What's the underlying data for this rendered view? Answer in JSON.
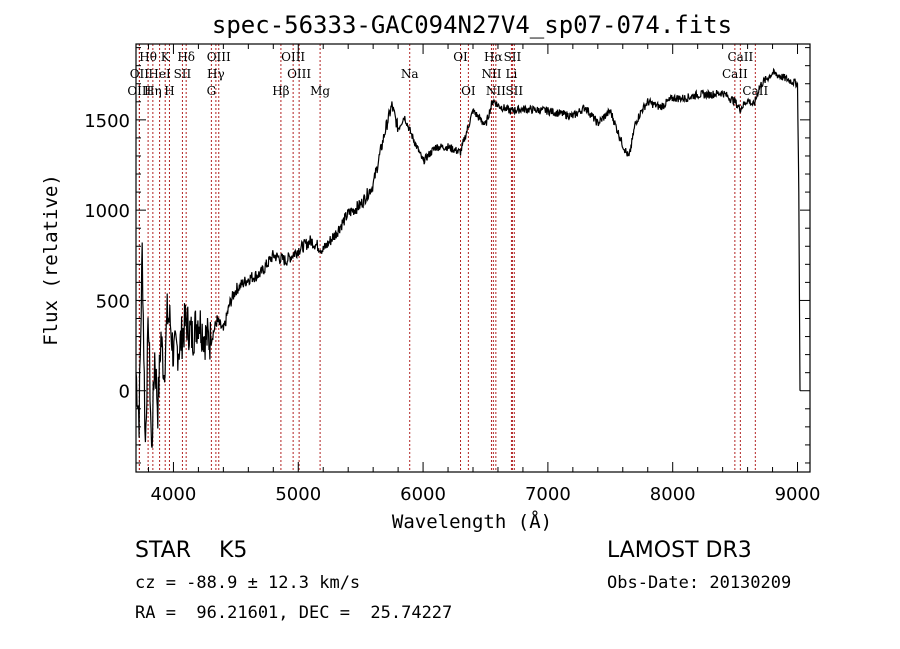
{
  "chart_data": {
    "type": "line",
    "title": "spec-56333-GAC094N27V4_sp07-074.fits",
    "xlabel": "Wavelength (Å)",
    "ylabel": "Flux (relative)",
    "xlim": [
      3700,
      9100
    ],
    "ylim": [
      -450,
      1920
    ],
    "xticks": [
      4000,
      5000,
      6000,
      7000,
      8000,
      9000
    ],
    "yticks": [
      0,
      500,
      1000,
      1500
    ],
    "xtick_labels": [
      "4000",
      "5000",
      "6000",
      "7000",
      "8000",
      "9000"
    ],
    "ytick_labels": [
      "0",
      "500",
      "1000",
      "1500"
    ],
    "series": [
      {
        "name": "flux",
        "x": [
          3700,
          3725,
          3750,
          3775,
          3800,
          3825,
          3850,
          3875,
          3900,
          3925,
          3950,
          3975,
          4000,
          4050,
          4100,
          4150,
          4200,
          4250,
          4300,
          4350,
          4400,
          4450,
          4500,
          4600,
          4700,
          4800,
          4900,
          5000,
          5100,
          5200,
          5300,
          5400,
          5500,
          5600,
          5700,
          5750,
          5800,
          5850,
          5900,
          6000,
          6100,
          6200,
          6300,
          6400,
          6500,
          6560,
          6600,
          6700,
          6800,
          7000,
          7200,
          7300,
          7400,
          7500,
          7600,
          7650,
          7700,
          7750,
          7800,
          7900,
          8000,
          8100,
          8200,
          8300,
          8400,
          8500,
          8540,
          8600,
          8650,
          8700,
          8800,
          8900,
          9000,
          9010,
          9020
        ],
        "y": [
          100,
          -150,
          780,
          -300,
          400,
          -350,
          200,
          -100,
          300,
          100,
          420,
          380,
          200,
          250,
          390,
          300,
          400,
          300,
          280,
          390,
          330,
          480,
          560,
          620,
          650,
          750,
          720,
          780,
          830,
          780,
          870,
          980,
          1030,
          1140,
          1450,
          1580,
          1450,
          1520,
          1430,
          1270,
          1350,
          1350,
          1320,
          1550,
          1470,
          1610,
          1580,
          1550,
          1560,
          1550,
          1520,
          1570,
          1480,
          1550,
          1360,
          1290,
          1480,
          1550,
          1600,
          1570,
          1620,
          1620,
          1640,
          1640,
          1650,
          1600,
          1560,
          1610,
          1580,
          1690,
          1760,
          1730,
          1700,
          1100,
          0
        ]
      }
    ],
    "lines": [
      {
        "name": "Hθ",
        "wavelength": 3797,
        "label_row": 1
      },
      {
        "name": "OII",
        "wavelength": 3727,
        "label_row": 2
      },
      {
        "name": "OIII",
        "wavelength": 3727,
        "label_row": 3
      },
      {
        "name": "K",
        "wavelength": 3934,
        "label_row": 1
      },
      {
        "name": "HeI",
        "wavelength": 3889,
        "label_row": 2
      },
      {
        "name": "Hη",
        "wavelength": 3835,
        "label_row": 3
      },
      {
        "name": "H",
        "wavelength": 3968,
        "label_row": 3
      },
      {
        "name": "SII",
        "wavelength": 4072,
        "label_row": 2
      },
      {
        "name": "Hδ",
        "wavelength": 4102,
        "label_row": 1
      },
      {
        "name": "OIII",
        "wavelength": 4363,
        "label_row": 1
      },
      {
        "name": "Hγ",
        "wavelength": 4340,
        "label_row": 2
      },
      {
        "name": "G",
        "wavelength": 4304,
        "label_row": 3
      },
      {
        "name": "Hβ",
        "wavelength": 4861,
        "label_row": 3
      },
      {
        "name": "OIII",
        "wavelength": 4959,
        "label_row": 1
      },
      {
        "name": "OIII",
        "wavelength": 5007,
        "label_row": 2
      },
      {
        "name": "Mg",
        "wavelength": 5175,
        "label_row": 3
      },
      {
        "name": "Na",
        "wavelength": 5893,
        "label_row": 2
      },
      {
        "name": "OI",
        "wavelength": 6300,
        "label_row": 1
      },
      {
        "name": "OI",
        "wavelength": 6363,
        "label_row": 3
      },
      {
        "name": "Hα",
        "wavelength": 6563,
        "label_row": 1
      },
      {
        "name": "SII",
        "wavelength": 6716,
        "label_row": 1
      },
      {
        "name": "NII",
        "wavelength": 6548,
        "label_row": 2
      },
      {
        "name": "Li",
        "wavelength": 6708,
        "label_row": 2
      },
      {
        "name": "NII",
        "wavelength": 6583,
        "label_row": 3
      },
      {
        "name": "SII",
        "wavelength": 6731,
        "label_row": 3
      },
      {
        "name": "CaII",
        "wavelength": 8542,
        "label_row": 1
      },
      {
        "name": "CaII",
        "wavelength": 8498,
        "label_row": 2
      },
      {
        "name": "CaII",
        "wavelength": 8662,
        "label_row": 3
      }
    ],
    "line_color": "#b22222"
  },
  "info": {
    "class": "STAR    K5",
    "survey": "LAMOST DR3",
    "cz": "cz = -88.9 ± 12.3 km/s",
    "obs_date": "Obs-Date: 20130209",
    "coords": "RA =  96.21601, DEC =  25.74227"
  }
}
